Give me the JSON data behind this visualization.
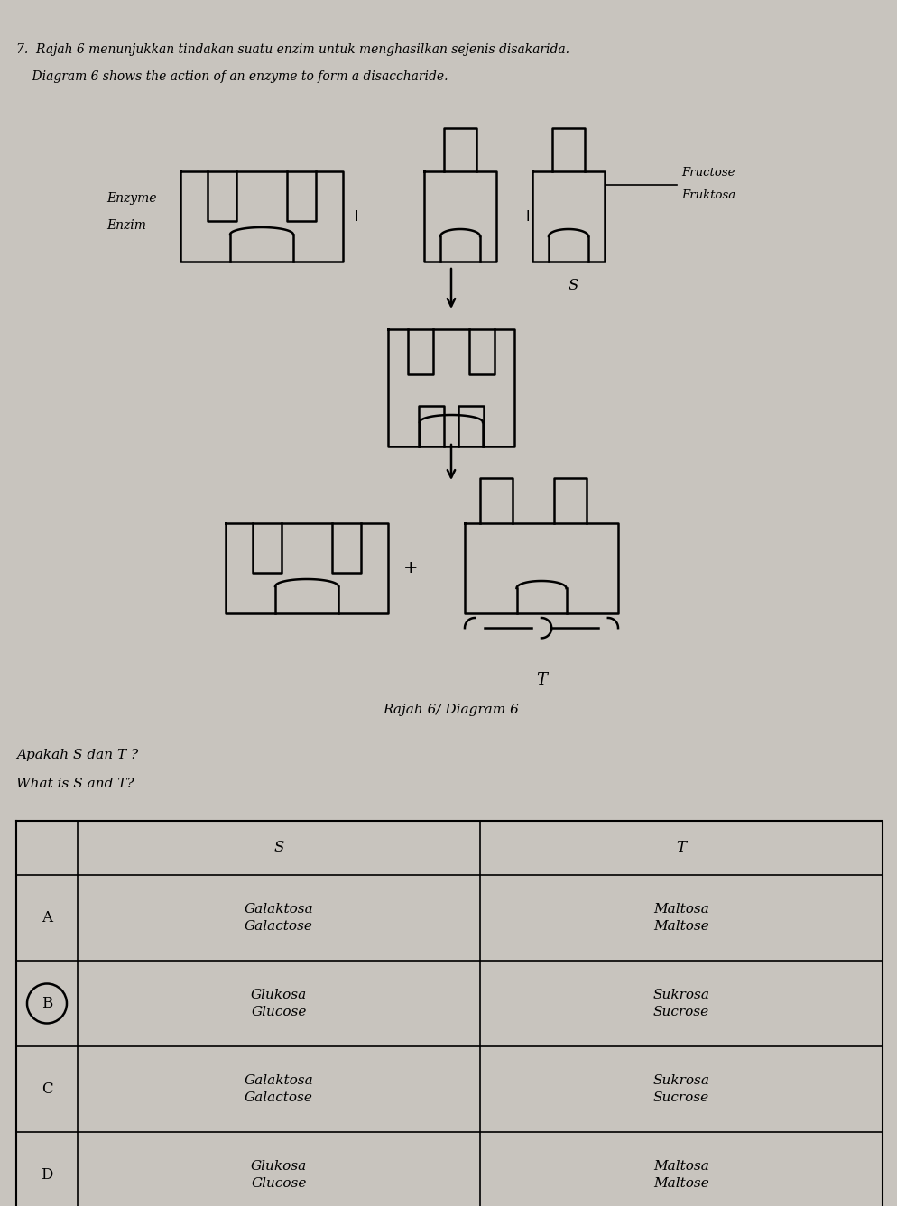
{
  "bg_color": "#c8c4be",
  "paper_color": "#c8c4be",
  "title_line1": "7.  Rajah 6 menunjukkan tindakan suatu enzim untuk menghasilkan sejenis disakarida.",
  "title_line2": "    Diagram 6 shows the action of an enzyme to form a disaccharide.",
  "question_line1": "Apakah S dan T ?",
  "question_line2": "What is S and T?",
  "diagram_caption": "Rajah 6/ Diagram 6",
  "table_headers": [
    "",
    "S",
    "T"
  ],
  "table_rows": [
    [
      "A",
      "Galaktosa\nGalactose",
      "Maltosa\nMaltose"
    ],
    [
      "B",
      "Glukosa\nGlucose",
      "Sukrosa\nSucrose"
    ],
    [
      "C",
      "Galaktosa\nGalactose",
      "Sukrosa\nSucrose"
    ],
    [
      "D",
      "Glukosa\nGlucose",
      "Maltosa\nMaltose"
    ]
  ],
  "circled_row": "B",
  "enzyme_label1": "Enzyme",
  "enzyme_label2": "Enzim",
  "fructose_label1": "Fructose",
  "fructose_label2": "Fruktosa",
  "s_label": "S",
  "t_label": "T",
  "lw": 1.8
}
